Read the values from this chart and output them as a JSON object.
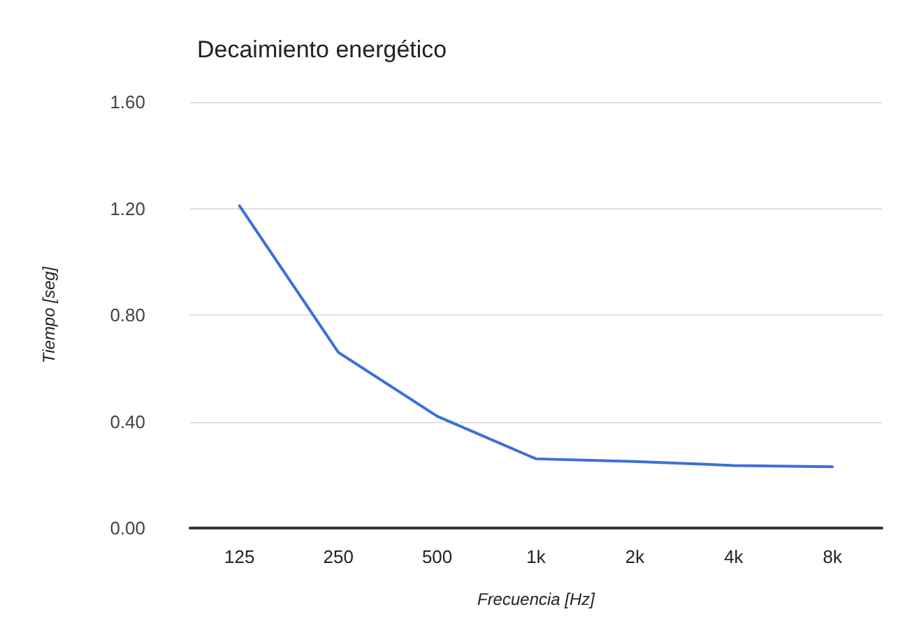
{
  "chart_data": {
    "type": "line",
    "title": "Decaimiento energético",
    "xlabel": "Frecuencia [Hz]",
    "ylabel": "Tiempo [seg]",
    "categories": [
      "125",
      "250",
      "500",
      "1k",
      "2k",
      "4k",
      "8k"
    ],
    "series": [
      {
        "color": "#3d6fd8",
        "values": [
          1.21,
          0.66,
          0.42,
          0.26,
          0.25,
          0.235,
          0.23
        ]
      }
    ],
    "ylim": [
      0,
      1.6
    ],
    "yticks": [
      {
        "value": 0,
        "label": "0.00"
      },
      {
        "value": 0.4,
        "label": "0.40"
      },
      {
        "value": 0.8,
        "label": "0.80"
      },
      {
        "value": 1.2,
        "label": "1.20"
      },
      {
        "value": 1.6,
        "label": "1.60"
      }
    ],
    "grid": "y",
    "marker": "none",
    "line_style": "solid"
  }
}
